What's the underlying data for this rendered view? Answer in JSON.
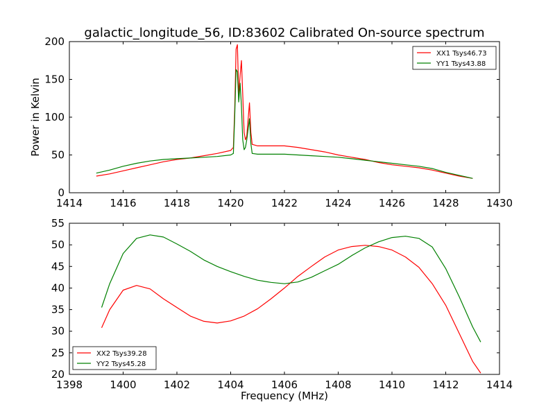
{
  "title": "galactic_longitude_56, ID:83602 Calibrated On-source spectrum",
  "chart_data": [
    {
      "type": "line",
      "xlabel": "",
      "ylabel": "Power in Kelvin",
      "xlim": [
        1414,
        1430
      ],
      "ylim": [
        0,
        200
      ],
      "xticks": [
        1414,
        1416,
        1418,
        1420,
        1422,
        1424,
        1426,
        1428,
        1430
      ],
      "yticks": [
        0,
        50,
        100,
        150,
        200
      ],
      "legend_position": "top-right",
      "series": [
        {
          "name": "XX1 Tsys46.73",
          "color": "#ff0000",
          "points": [
            [
              1415.0,
              22
            ],
            [
              1415.5,
              25
            ],
            [
              1416.0,
              29
            ],
            [
              1416.5,
              33
            ],
            [
              1417.0,
              37
            ],
            [
              1417.5,
              41
            ],
            [
              1418.0,
              44
            ],
            [
              1418.5,
              46
            ],
            [
              1419.0,
              49
            ],
            [
              1419.5,
              52
            ],
            [
              1420.0,
              56
            ],
            [
              1420.1,
              60
            ],
            [
              1420.15,
              110
            ],
            [
              1420.2,
              190
            ],
            [
              1420.25,
              196
            ],
            [
              1420.3,
              130
            ],
            [
              1420.35,
              155
            ],
            [
              1420.4,
              175
            ],
            [
              1420.45,
              130
            ],
            [
              1420.5,
              80
            ],
            [
              1420.55,
              70
            ],
            [
              1420.6,
              75
            ],
            [
              1420.7,
              119
            ],
            [
              1420.75,
              80
            ],
            [
              1420.8,
              64
            ],
            [
              1421.0,
              62
            ],
            [
              1421.5,
              62
            ],
            [
              1422.0,
              62
            ],
            [
              1422.5,
              60
            ],
            [
              1423.0,
              57
            ],
            [
              1423.5,
              54
            ],
            [
              1424.0,
              50
            ],
            [
              1424.5,
              47
            ],
            [
              1425.0,
              44
            ],
            [
              1425.5,
              40
            ],
            [
              1426.0,
              37
            ],
            [
              1426.5,
              35
            ],
            [
              1427.0,
              33
            ],
            [
              1427.5,
              30
            ],
            [
              1428.0,
              26
            ],
            [
              1428.5,
              22
            ],
            [
              1429.0,
              19
            ]
          ]
        },
        {
          "name": "YY1 Tsys43.88",
          "color": "#008000",
          "points": [
            [
              1415.0,
              26
            ],
            [
              1415.5,
              30
            ],
            [
              1416.0,
              35
            ],
            [
              1416.5,
              39
            ],
            [
              1417.0,
              42
            ],
            [
              1417.5,
              44
            ],
            [
              1418.0,
              45
            ],
            [
              1418.5,
              46
            ],
            [
              1419.0,
              47
            ],
            [
              1419.5,
              48
            ],
            [
              1420.0,
              50
            ],
            [
              1420.1,
              52
            ],
            [
              1420.15,
              100
            ],
            [
              1420.2,
              163
            ],
            [
              1420.25,
              160
            ],
            [
              1420.3,
              120
            ],
            [
              1420.35,
              145
            ],
            [
              1420.4,
              115
            ],
            [
              1420.45,
              70
            ],
            [
              1420.5,
              57
            ],
            [
              1420.55,
              60
            ],
            [
              1420.6,
              70
            ],
            [
              1420.7,
              98
            ],
            [
              1420.75,
              65
            ],
            [
              1420.8,
              52
            ],
            [
              1421.0,
              51
            ],
            [
              1421.5,
              51
            ],
            [
              1422.0,
              51
            ],
            [
              1422.5,
              50
            ],
            [
              1423.0,
              49
            ],
            [
              1423.5,
              48
            ],
            [
              1424.0,
              47
            ],
            [
              1424.5,
              45
            ],
            [
              1425.0,
              43
            ],
            [
              1425.5,
              41
            ],
            [
              1426.0,
              39
            ],
            [
              1426.5,
              37
            ],
            [
              1427.0,
              35
            ],
            [
              1427.5,
              32
            ],
            [
              1428.0,
              27
            ],
            [
              1428.5,
              23
            ],
            [
              1429.0,
              19
            ]
          ]
        }
      ]
    },
    {
      "type": "line",
      "xlabel": "Frequency (MHz)",
      "ylabel": "",
      "xlim": [
        1398,
        1414
      ],
      "ylim": [
        20,
        55
      ],
      "xticks": [
        1398,
        1400,
        1402,
        1404,
        1406,
        1408,
        1410,
        1412,
        1414
      ],
      "yticks": [
        20,
        25,
        30,
        35,
        40,
        45,
        50,
        55
      ],
      "legend_position": "bottom-left",
      "series": [
        {
          "name": "XX2 Tsys39.28",
          "color": "#ff0000",
          "points": [
            [
              1399.2,
              30.8
            ],
            [
              1399.5,
              35
            ],
            [
              1400.0,
              39.5
            ],
            [
              1400.5,
              40.6
            ],
            [
              1401.0,
              39.8
            ],
            [
              1401.5,
              37.5
            ],
            [
              1402.0,
              35.5
            ],
            [
              1402.5,
              33.5
            ],
            [
              1403.0,
              32.3
            ],
            [
              1403.5,
              31.9
            ],
            [
              1404.0,
              32.4
            ],
            [
              1404.5,
              33.5
            ],
            [
              1405.0,
              35.2
            ],
            [
              1405.5,
              37.5
            ],
            [
              1406.0,
              40.0
            ],
            [
              1406.5,
              42.7
            ],
            [
              1407.0,
              45.0
            ],
            [
              1407.5,
              47.2
            ],
            [
              1408.0,
              48.8
            ],
            [
              1408.5,
              49.6
            ],
            [
              1409.0,
              49.9
            ],
            [
              1409.5,
              49.6
            ],
            [
              1410.0,
              48.8
            ],
            [
              1410.5,
              47.2
            ],
            [
              1411.0,
              44.8
            ],
            [
              1411.5,
              41.0
            ],
            [
              1412.0,
              36.0
            ],
            [
              1412.5,
              29.5
            ],
            [
              1413.0,
              23.0
            ],
            [
              1413.3,
              20.3
            ]
          ]
        },
        {
          "name": "YY2 Tsys45.28",
          "color": "#008000",
          "points": [
            [
              1399.2,
              35.5
            ],
            [
              1399.5,
              41
            ],
            [
              1400.0,
              48
            ],
            [
              1400.5,
              51.5
            ],
            [
              1401.0,
              52.3
            ],
            [
              1401.5,
              51.8
            ],
            [
              1402.0,
              50.2
            ],
            [
              1402.5,
              48.5
            ],
            [
              1403.0,
              46.5
            ],
            [
              1403.5,
              45.0
            ],
            [
              1404.0,
              43.8
            ],
            [
              1404.5,
              42.7
            ],
            [
              1405.0,
              41.8
            ],
            [
              1405.5,
              41.3
            ],
            [
              1406.0,
              41.0
            ],
            [
              1406.5,
              41.4
            ],
            [
              1407.0,
              42.5
            ],
            [
              1407.5,
              44.0
            ],
            [
              1408.0,
              45.5
            ],
            [
              1408.5,
              47.5
            ],
            [
              1409.0,
              49.3
            ],
            [
              1409.5,
              50.7
            ],
            [
              1410.0,
              51.7
            ],
            [
              1410.5,
              52.0
            ],
            [
              1411.0,
              51.5
            ],
            [
              1411.5,
              49.5
            ],
            [
              1412.0,
              44.5
            ],
            [
              1412.5,
              38.0
            ],
            [
              1413.0,
              31.0
            ],
            [
              1413.3,
              27.5
            ]
          ]
        }
      ]
    }
  ]
}
